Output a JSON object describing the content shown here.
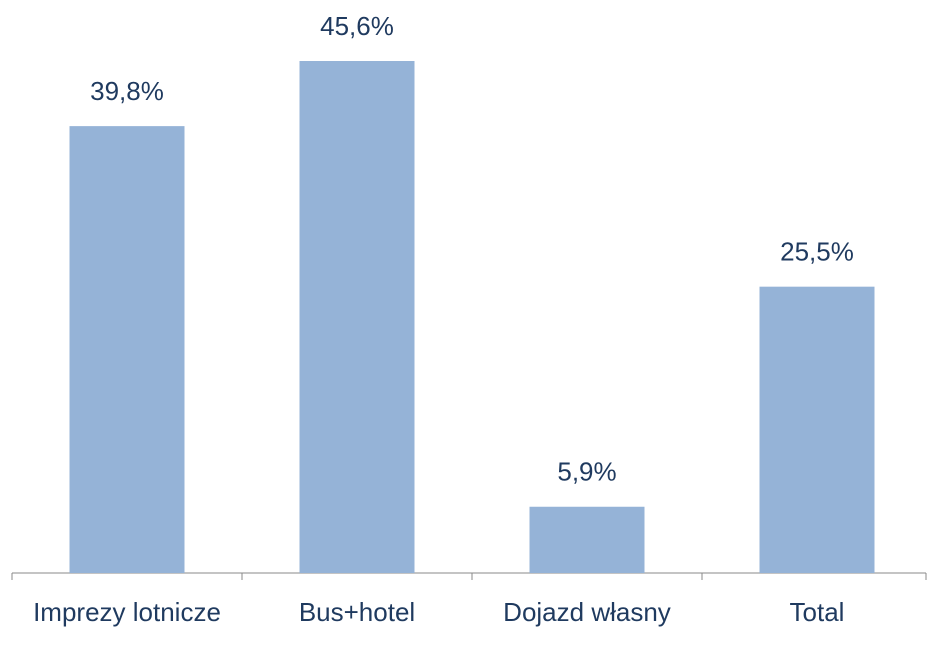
{
  "chart_data": {
    "type": "bar",
    "categories": [
      "Imprezy lotnicze",
      "Bus+hotel",
      "Dojazd własny",
      "Total"
    ],
    "values": [
      39.8,
      45.6,
      5.9,
      25.5
    ],
    "value_labels": [
      "39,8%",
      "45,6%",
      "5,9%",
      "25,5%"
    ],
    "color": "#95b3d7"
  }
}
